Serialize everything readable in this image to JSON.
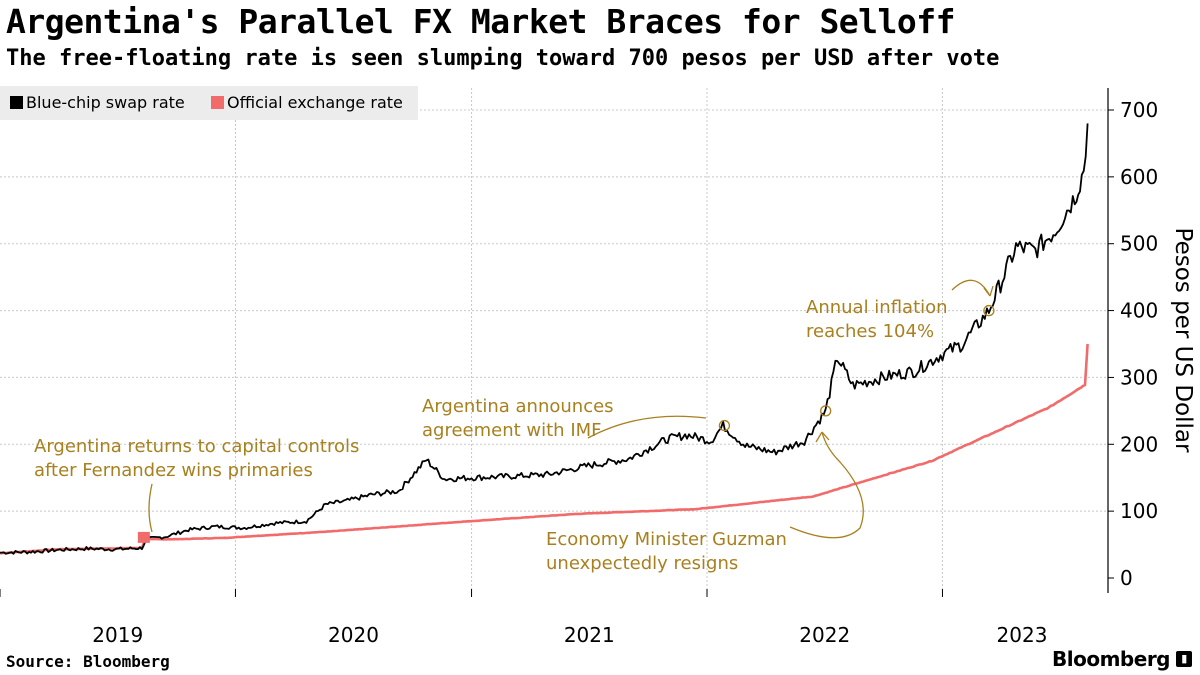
{
  "title": "Argentina's Parallel FX Market Braces for Selloff",
  "subtitle": "The free-floating rate is seen slumping toward 700 pesos per USD after vote",
  "source": "Source: Bloomberg",
  "logo_text": "Bloomberg",
  "colors": {
    "blue_chip": "#000000",
    "official": "#f26b6b",
    "annotation": "#a8801f",
    "grid": "#c8c8c8"
  },
  "chart_data": {
    "type": "line",
    "ylabel": "Pesos per US Dollar",
    "ylim": [
      0,
      750
    ],
    "y_ticks": [
      "0",
      "100",
      "200",
      "300",
      "400",
      "500",
      "600",
      "700"
    ],
    "x_tick_labels": [
      "2019",
      "2020",
      "2021",
      "2022",
      "2023"
    ],
    "grid": true,
    "legend_position": "top-left",
    "series": [
      {
        "name": "Blue-chip swap rate",
        "points": [
          [
            "2019-01-01",
            38
          ],
          [
            "2019-02-15",
            39
          ],
          [
            "2019-04-01",
            42
          ],
          [
            "2019-05-15",
            44
          ],
          [
            "2019-07-01",
            43
          ],
          [
            "2019-08-09",
            45
          ],
          [
            "2019-08-16",
            58
          ],
          [
            "2019-09-15",
            62
          ],
          [
            "2019-10-20",
            72
          ],
          [
            "2019-12-01",
            77
          ],
          [
            "2020-01-15",
            75
          ],
          [
            "2020-03-01",
            82
          ],
          [
            "2020-04-20",
            85
          ],
          [
            "2020-05-20",
            110
          ],
          [
            "2020-06-20",
            115
          ],
          [
            "2020-08-01",
            125
          ],
          [
            "2020-09-10",
            130
          ],
          [
            "2020-10-23",
            177
          ],
          [
            "2020-11-20",
            148
          ],
          [
            "2021-01-01",
            150
          ],
          [
            "2021-03-01",
            152
          ],
          [
            "2021-05-01",
            155
          ],
          [
            "2021-07-01",
            168
          ],
          [
            "2021-09-01",
            178
          ],
          [
            "2021-11-01",
            208
          ],
          [
            "2021-12-01",
            214
          ],
          [
            "2022-01-07",
            205
          ],
          [
            "2022-01-26",
            228
          ],
          [
            "2022-03-01",
            198
          ],
          [
            "2022-04-15",
            188
          ],
          [
            "2022-06-01",
            205
          ],
          [
            "2022-07-04",
            250
          ],
          [
            "2022-07-22",
            330
          ],
          [
            "2022-08-15",
            288
          ],
          [
            "2022-10-01",
            300
          ],
          [
            "2022-11-20",
            310
          ],
          [
            "2023-01-01",
            335
          ],
          [
            "2023-02-01",
            350
          ],
          [
            "2023-03-14",
            400
          ],
          [
            "2023-04-01",
            440
          ],
          [
            "2023-04-25",
            495
          ],
          [
            "2023-05-25",
            490
          ],
          [
            "2023-06-25",
            520
          ],
          [
            "2023-07-25",
            570
          ],
          [
            "2023-08-05",
            600
          ],
          [
            "2023-08-11",
            630
          ],
          [
            "2023-08-14",
            680
          ]
        ]
      },
      {
        "name": "Official exchange rate",
        "points": [
          [
            "2019-01-01",
            37
          ],
          [
            "2019-04-01",
            43
          ],
          [
            "2019-08-09",
            45
          ],
          [
            "2019-08-14",
            58
          ],
          [
            "2019-10-01",
            58
          ],
          [
            "2019-12-15",
            60
          ],
          [
            "2020-06-01",
            70
          ],
          [
            "2020-12-15",
            84
          ],
          [
            "2021-06-15",
            96
          ],
          [
            "2021-12-15",
            103
          ],
          [
            "2022-06-15",
            122
          ],
          [
            "2022-12-15",
            175
          ],
          [
            "2023-06-15",
            255
          ],
          [
            "2023-08-10",
            289
          ],
          [
            "2023-08-14",
            350
          ]
        ]
      }
    ],
    "annotations": [
      {
        "lines": [
          "Argentina returns to capital controls",
          "after Fernandez wins primaries"
        ],
        "date": "2019-08-12",
        "value": 60
      },
      {
        "lines": [
          "Argentina announces",
          "agreement with IMF"
        ],
        "date": "2022-01-28",
        "value": 228
      },
      {
        "lines": [
          "Economy Minister Guzman",
          "unexpectedly resigns"
        ],
        "date": "2022-07-04",
        "value": 250
      },
      {
        "lines": [
          "Annual inflation",
          "reaches 104%"
        ],
        "date": "2023-03-14",
        "value": 400
      }
    ]
  }
}
